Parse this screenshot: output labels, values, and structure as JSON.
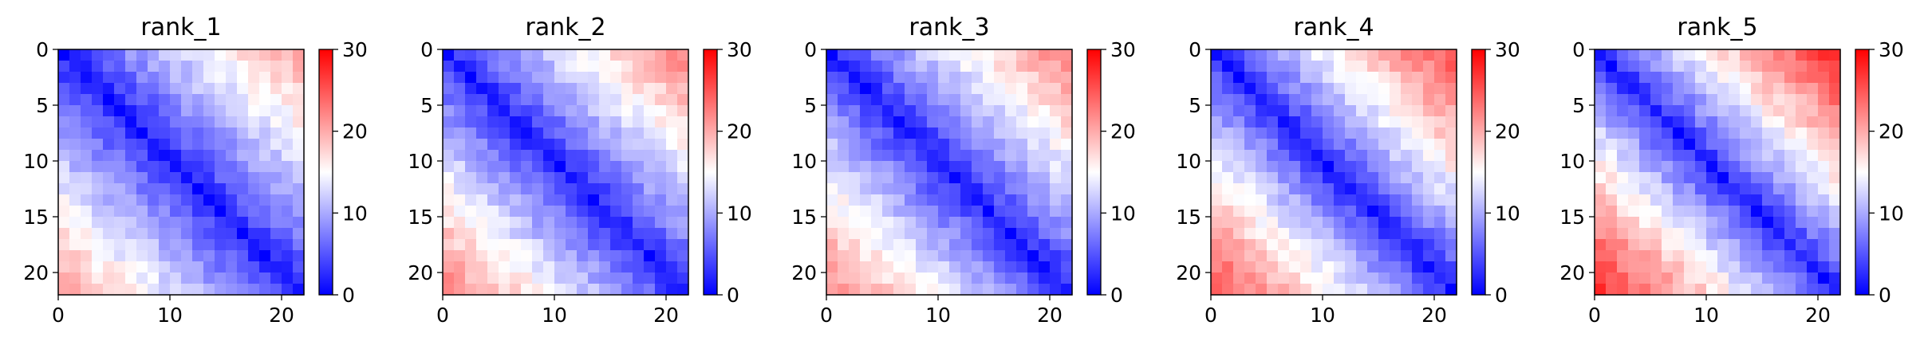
{
  "chart_data": [
    {
      "type": "heatmap",
      "title": "rank_1",
      "n": 22,
      "zlim": [
        0,
        30
      ],
      "peak": 20,
      "y_ticks": [
        "0",
        "5",
        "10",
        "15",
        "20"
      ],
      "x_ticks": [
        "0",
        "10",
        "20"
      ],
      "colorbar_ticks": [
        "0",
        "10",
        "20",
        "30"
      ],
      "colormap": [
        "#0000ff",
        "#ffffff",
        "#ff0000"
      ]
    },
    {
      "type": "heatmap",
      "title": "rank_2",
      "n": 22,
      "zlim": [
        0,
        30
      ],
      "peak": 22,
      "y_ticks": [
        "0",
        "5",
        "10",
        "15",
        "20"
      ],
      "x_ticks": [
        "0",
        "10",
        "20"
      ],
      "colorbar_ticks": [
        "0",
        "10",
        "20",
        "30"
      ],
      "colormap": [
        "#0000ff",
        "#ffffff",
        "#ff0000"
      ]
    },
    {
      "type": "heatmap",
      "title": "rank_3",
      "n": 22,
      "zlim": [
        0,
        30
      ],
      "peak": 22,
      "y_ticks": [
        "0",
        "5",
        "10",
        "15",
        "20"
      ],
      "x_ticks": [
        "0",
        "10",
        "20"
      ],
      "colorbar_ticks": [
        "0",
        "10",
        "20",
        "30"
      ],
      "colormap": [
        "#0000ff",
        "#ffffff",
        "#ff0000"
      ]
    },
    {
      "type": "heatmap",
      "title": "rank_4",
      "n": 22,
      "zlim": [
        0,
        30
      ],
      "peak": 25,
      "y_ticks": [
        "0",
        "5",
        "10",
        "15",
        "20"
      ],
      "x_ticks": [
        "0",
        "10",
        "20"
      ],
      "colorbar_ticks": [
        "0",
        "10",
        "20",
        "30"
      ],
      "colormap": [
        "#0000ff",
        "#ffffff",
        "#ff0000"
      ]
    },
    {
      "type": "heatmap",
      "title": "rank_5",
      "n": 22,
      "zlim": [
        0,
        30
      ],
      "peak": 27,
      "y_ticks": [
        "0",
        "5",
        "10",
        "15",
        "20"
      ],
      "x_ticks": [
        "0",
        "10",
        "20"
      ],
      "colorbar_ticks": [
        "0",
        "10",
        "20",
        "30"
      ],
      "colormap": [
        "#0000ff",
        "#ffffff",
        "#ff0000"
      ]
    }
  ]
}
